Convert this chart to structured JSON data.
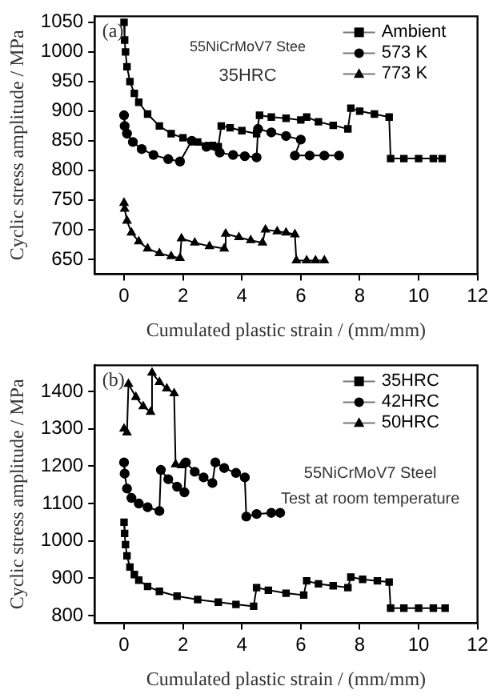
{
  "chart_data": [
    {
      "type": "line",
      "xlabel": "Cumulated plastic strain / (mm/mm)",
      "ylabel": "Cyclic stress amplitude / MPa",
      "annotations": [
        "(a)",
        "55NiCrMoV7 Stee",
        "35HRC"
      ],
      "xlim": [
        -1,
        12
      ],
      "xticks": [
        0,
        2,
        4,
        6,
        8,
        10,
        12
      ],
      "ylim": [
        625,
        1060
      ],
      "yticks": [
        650,
        700,
        750,
        800,
        850,
        900,
        950,
        1000,
        1050
      ],
      "grid": false,
      "legend": "top right",
      "series": [
        {
          "name": "Ambient",
          "color": "#000000",
          "marker": "square",
          "x": [
            0,
            0.02,
            0.05,
            0.1,
            0.2,
            0.35,
            0.5,
            0.8,
            1.2,
            1.6,
            2,
            2.5,
            3,
            3.2,
            3.3,
            3.6,
            4,
            4.5,
            4.6,
            5,
            5.5,
            6,
            6.2,
            6.6,
            7.1,
            7.6,
            7.7,
            8,
            8.5,
            9,
            9.05,
            9.5,
            10,
            10.5,
            10.8
          ],
          "values": [
            1050,
            1020,
            1000,
            975,
            950,
            930,
            915,
            895,
            875,
            862,
            855,
            848,
            842,
            840,
            875,
            872,
            867,
            862,
            893,
            890,
            888,
            885,
            890,
            882,
            876,
            870,
            905,
            900,
            895,
            890,
            820,
            820,
            820,
            820,
            820
          ]
        },
        {
          "name": "573 K",
          "color": "#000000",
          "marker": "circle",
          "x": [
            0,
            0.02,
            0.1,
            0.3,
            0.6,
            1,
            1.5,
            1.9,
            2.3,
            2.8,
            3.25,
            3.7,
            4.1,
            4.5,
            4.55,
            5,
            5.5,
            6,
            5.8,
            6.3,
            6.8,
            7.3
          ],
          "values": [
            893,
            875,
            862,
            848,
            836,
            826,
            819,
            815,
            850,
            840,
            830,
            826,
            824,
            822,
            870,
            864,
            858,
            852,
            825,
            825,
            825,
            825
          ]
        },
        {
          "name": "773 K",
          "color": "#000000",
          "marker": "triangle",
          "x": [
            0,
            0.02,
            0.1,
            0.25,
            0.5,
            0.8,
            1.2,
            1.6,
            1.9,
            1.95,
            2.4,
            2.9,
            3.4,
            3.45,
            3.9,
            4.3,
            4.7,
            4.8,
            5.2,
            5.5,
            5.8,
            5.85,
            6.2,
            6.5,
            6.8
          ],
          "values": [
            745,
            735,
            715,
            695,
            680,
            668,
            660,
            655,
            652,
            685,
            678,
            672,
            668,
            693,
            687,
            682,
            678,
            700,
            697,
            695,
            692,
            648,
            648,
            648,
            648
          ]
        }
      ]
    },
    {
      "type": "line",
      "xlabel": "Cumulated plastic strain / (mm/mm)",
      "ylabel": "Cyclic stress amplitude / MPa",
      "annotations": [
        "(b)",
        "55NiCrMoV7 Steel",
        "Test at room temperature"
      ],
      "xlim": [
        -1,
        12
      ],
      "xticks": [
        0,
        2,
        4,
        6,
        8,
        10,
        12
      ],
      "ylim": [
        780,
        1470
      ],
      "yticks": [
        800,
        900,
        1000,
        1100,
        1200,
        1300,
        1400
      ],
      "grid": false,
      "legend": "top right",
      "series": [
        {
          "name": "35HRC",
          "color": "#000000",
          "marker": "square",
          "x": [
            0,
            0.02,
            0.05,
            0.1,
            0.2,
            0.35,
            0.5,
            0.8,
            1.2,
            1.8,
            2.5,
            3.2,
            3.8,
            4.4,
            4.5,
            4.9,
            5.5,
            6.1,
            6.2,
            6.6,
            7.1,
            7.6,
            7.7,
            8.1,
            8.6,
            9,
            9.05,
            9.5,
            10,
            10.5,
            10.9
          ],
          "values": [
            1050,
            1020,
            990,
            960,
            930,
            910,
            895,
            878,
            865,
            852,
            843,
            836,
            830,
            825,
            875,
            868,
            860,
            855,
            893,
            885,
            880,
            875,
            903,
            897,
            893,
            890,
            820,
            820,
            820,
            820,
            820
          ]
        },
        {
          "name": "42HRC",
          "color": "#000000",
          "marker": "circle",
          "x": [
            0,
            0.02,
            0.1,
            0.25,
            0.5,
            0.8,
            1.2,
            1.25,
            1.5,
            1.8,
            2.05,
            2.1,
            2.4,
            2.7,
            3,
            3.1,
            3.4,
            3.8,
            4.1,
            4.15,
            4.5,
            5,
            5.3
          ],
          "values": [
            1210,
            1180,
            1140,
            1115,
            1100,
            1090,
            1080,
            1190,
            1165,
            1145,
            1130,
            1210,
            1185,
            1170,
            1155,
            1210,
            1195,
            1182,
            1170,
            1065,
            1072,
            1075,
            1075
          ]
        },
        {
          "name": "50HRC",
          "color": "#000000",
          "marker": "triangle",
          "x": [
            0,
            0.1,
            0.15,
            0.4,
            0.65,
            0.9,
            0.95,
            1.2,
            1.45,
            1.7,
            1.75,
            1.95
          ],
          "values": [
            1300,
            1290,
            1420,
            1385,
            1360,
            1345,
            1450,
            1425,
            1408,
            1395,
            1205,
            1202
          ]
        }
      ]
    }
  ]
}
